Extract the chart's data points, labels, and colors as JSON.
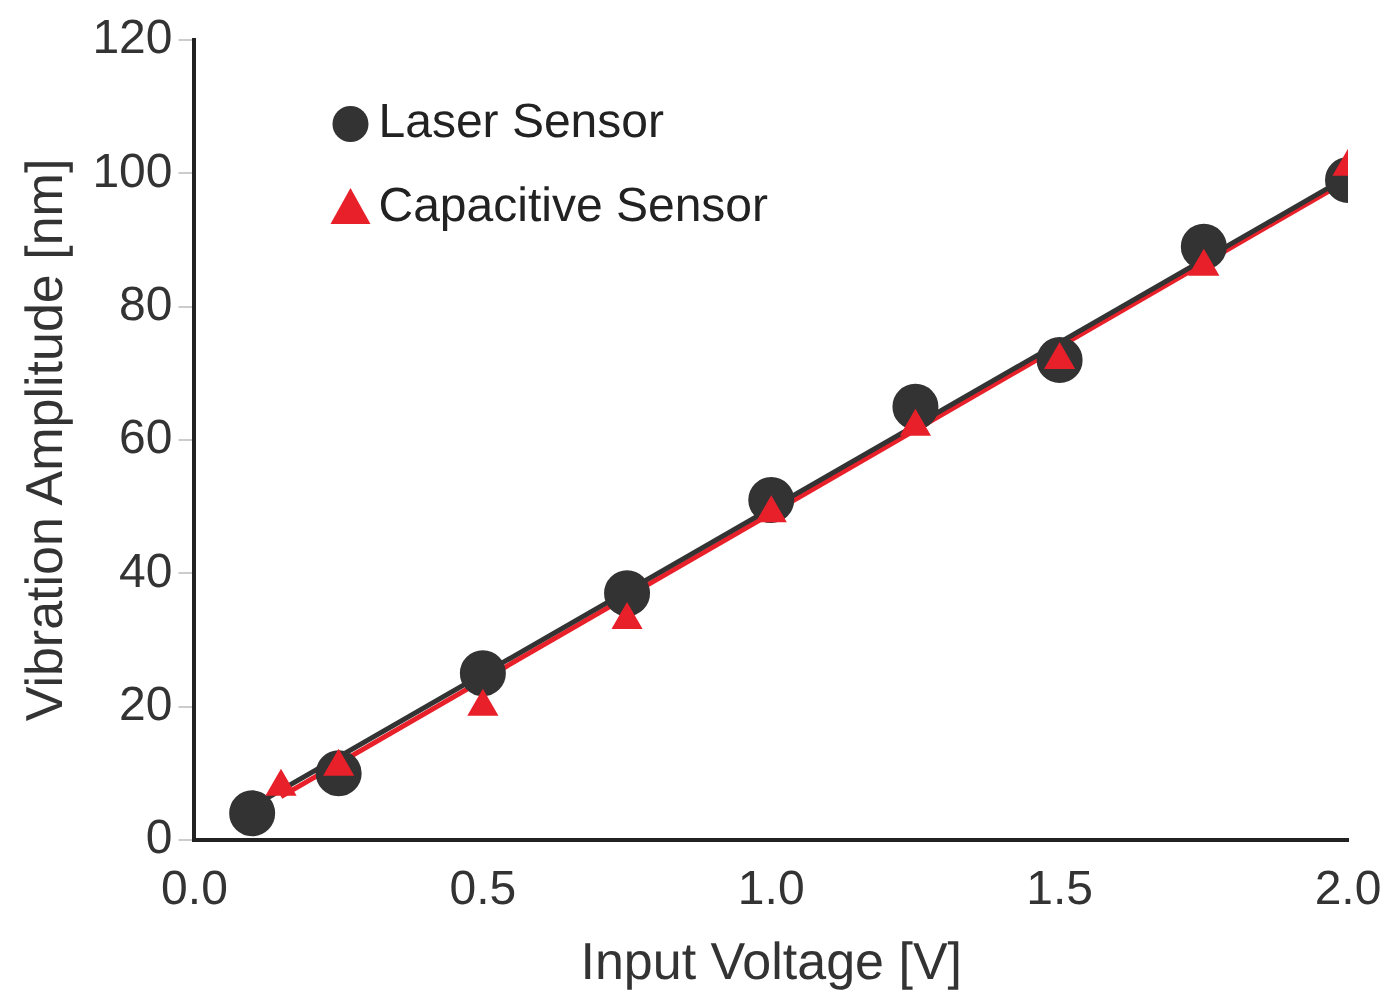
{
  "chart_data": {
    "type": "scatter",
    "xlabel": "Input Voltage [V]",
    "ylabel": "Vibration Amplitude [nm]",
    "xlim": [
      0,
      2
    ],
    "xticks": [
      {
        "value": 0,
        "label": "0.0"
      },
      {
        "value": 0.5,
        "label": "0.5"
      },
      {
        "value": 1,
        "label": "1.0"
      },
      {
        "value": 1.5,
        "label": "1.5"
      },
      {
        "value": 2,
        "label": "2.0"
      }
    ],
    "ylim": [
      0,
      120
    ],
    "yticks": [
      0,
      20,
      40,
      60,
      80,
      100,
      120
    ],
    "grid": false,
    "legend": "top left",
    "series": [
      {
        "name": "Laser Sensor",
        "color": "#333333",
        "marker": "circle",
        "x": [
          0.1,
          0.25,
          0.5,
          0.75,
          1.0,
          1.25,
          1.5,
          1.75,
          2.0
        ],
        "values": [
          4,
          10,
          25,
          37,
          51,
          65,
          72,
          89,
          99
        ]
      },
      {
        "name": "Capacitive Sensor",
        "color": "#e8202a",
        "marker": "triangle",
        "x": [
          0.15,
          0.25,
          0.5,
          0.75,
          1.0,
          1.25,
          1.5,
          1.75,
          2.0
        ],
        "values": [
          8,
          11,
          20,
          33,
          49,
          62,
          72,
          86,
          101
        ]
      },
      {
        "type": "line",
        "color": "#333333",
        "marker": "none",
        "x": [
          0.1,
          2.0
        ],
        "values": [
          5,
          99.5
        ]
      },
      {
        "type": "line",
        "color": "#e8202a",
        "marker": "none",
        "x": [
          0.15,
          2.0
        ],
        "values": [
          6.5,
          99
        ]
      }
    ]
  }
}
